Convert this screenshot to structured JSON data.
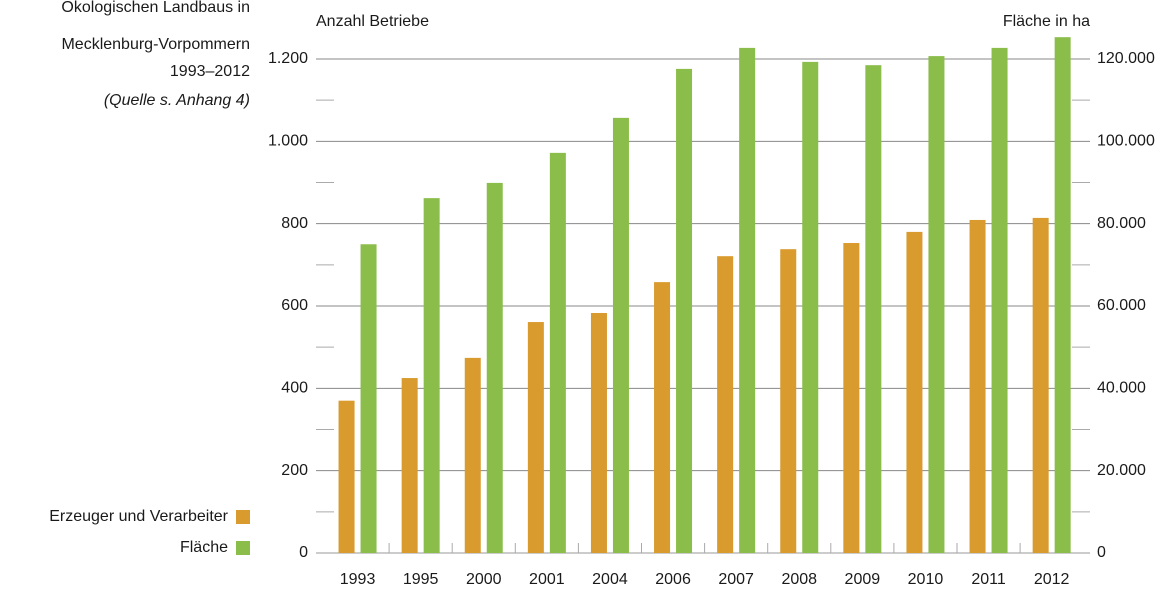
{
  "chart_data": {
    "type": "bar",
    "title_lines": [
      "Ökologischen Landbaus in",
      "Mecklenburg-Vorpommern",
      "1993–2012"
    ],
    "source": "(Quelle s. Anhang 4)",
    "ylabel": "Anzahl Betriebe",
    "y2label": "Fläche in ha",
    "categories": [
      "1993",
      "1995",
      "2000",
      "2001",
      "2004",
      "2006",
      "2007",
      "2008",
      "2009",
      "2010",
      "2011",
      "2012"
    ],
    "series": [
      {
        "name": "Erzeuger und Verarbeiter",
        "color": "#d99a2e",
        "values": [
          370,
          425,
          474,
          561,
          583,
          658,
          721,
          738,
          753,
          780,
          809,
          814
        ]
      },
      {
        "name": "Fläche",
        "color": "#8bbd4a",
        "axis": "y2",
        "values": [
          75000,
          86200,
          89900,
          97200,
          105700,
          117600,
          122700,
          119300,
          118500,
          120700,
          122700,
          125300
        ]
      }
    ],
    "ylim": [
      0,
      1200
    ],
    "yticks": [
      0,
      200,
      400,
      600,
      800,
      {
        "value": 1000,
        "label": "1.000"
      },
      {
        "value": 1200,
        "label": "1.200"
      }
    ],
    "yminorticks": [
      100,
      300,
      500,
      700,
      900,
      1100
    ],
    "y2lim": [
      0,
      120000
    ],
    "y2ticks": [
      0,
      {
        "value": 20000,
        "label": "20.000"
      },
      {
        "value": 40000,
        "label": "40.000"
      },
      {
        "value": 60000,
        "label": "60.000"
      },
      {
        "value": 80000,
        "label": "80.000"
      },
      {
        "value": 100000,
        "label": "100.000"
      },
      {
        "value": 120000,
        "label": "120.000"
      }
    ],
    "grid": true
  }
}
